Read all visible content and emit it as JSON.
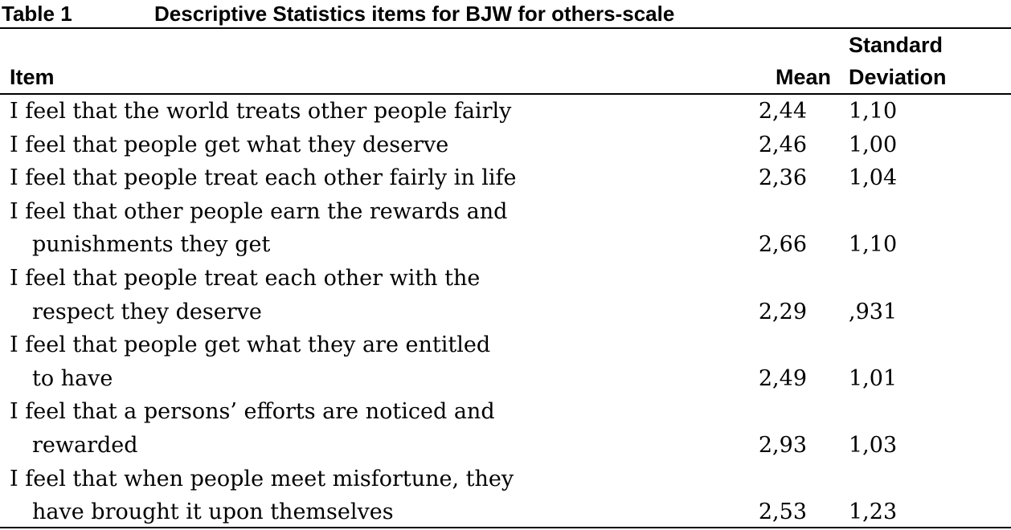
{
  "table": {
    "label": "Table 1",
    "title": "Descriptive Statistics items for BJW for others-scale",
    "headers": {
      "item": "Item",
      "mean": "Mean",
      "sd_line1": "Standard",
      "sd_line2": "Deviation"
    },
    "rows": [
      {
        "item_line1": "I feel that the world treats other people fairly",
        "item_line2": "",
        "mean": "2,44",
        "sd": "1,10"
      },
      {
        "item_line1": "I feel that people get what they deserve",
        "item_line2": "",
        "mean": "2,46",
        "sd": "1,00"
      },
      {
        "item_line1": "I feel that people treat each other fairly in life",
        "item_line2": "",
        "mean": "2,36",
        "sd": "1,04"
      },
      {
        "item_line1": "I feel that other people earn the rewards and",
        "item_line2": "punishments they get",
        "mean": "2,66",
        "sd": "1,10"
      },
      {
        "item_line1": "I feel that people treat each other with the",
        "item_line2": "respect they deserve",
        "mean": "2,29",
        "sd": ",931"
      },
      {
        "item_line1": "I feel that people get what they are entitled",
        "item_line2": "to have",
        "mean": "2,49",
        "sd": "1,01"
      },
      {
        "item_line1": "I feel that a persons’ efforts are noticed and",
        "item_line2": "rewarded",
        "mean": "2,93",
        "sd": "1,03"
      },
      {
        "item_line1": "I feel that when people meet misfortune, they",
        "item_line2": "have brought it upon themselves",
        "mean": "2,53",
        "sd": "1,23"
      }
    ]
  }
}
